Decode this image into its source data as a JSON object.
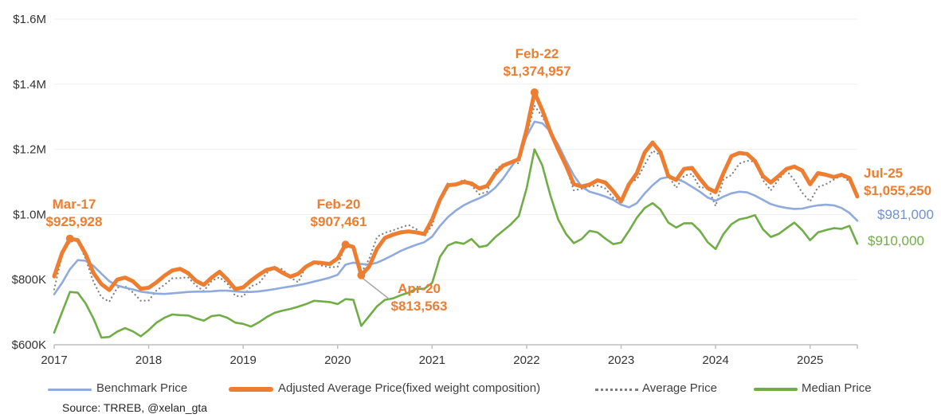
{
  "source_note": "Source: TRREB, @xelan_gta",
  "colors": {
    "adjusted_orange": "#ED7D31",
    "benchmark_blue": "#8FAADC",
    "benchmark_label_blue": "#7191CF",
    "median_green": "#70AD47",
    "average_gray": "#7F7F7F",
    "axis_line": "#BFBFBF",
    "gridline": "#F1F1F1",
    "tick_text": "#333333",
    "legend_text": "#404040",
    "leader_line": "#A6A6A6"
  },
  "legend": {
    "items": [
      {
        "label": "Benchmark Price",
        "series": "benchmark"
      },
      {
        "label": "Adjusted Average Price(fixed weight composition)",
        "series": "adjusted"
      },
      {
        "label": "Average Price",
        "series": "average"
      },
      {
        "label": "Median Price",
        "series": "median"
      }
    ]
  },
  "annotations": {
    "mar17": {
      "label": "Mar-17",
      "value": "$925,928"
    },
    "feb20": {
      "label": "Feb-20",
      "value": "$907,461"
    },
    "apr20": {
      "label": "Apr-20",
      "value": "$813,563"
    },
    "feb22": {
      "label": "Feb-22",
      "value": "$1,374,957"
    },
    "jul25": {
      "label": "Jul-25",
      "value": "$1,055,250"
    },
    "jul25_benchmark": {
      "value": "$981,000"
    },
    "jul25_median": {
      "value": "$910,000"
    }
  },
  "chart_data": {
    "type": "line",
    "units": "CAD thousands",
    "x_start": "2017-01",
    "x_end": "2025-07",
    "x_tick_labels": [
      "2017",
      "2018",
      "2019",
      "2020",
      "2021",
      "2022",
      "2023",
      "2024",
      "2025"
    ],
    "y_ticks": [
      {
        "label": "$600K",
        "value": 600
      },
      {
        "label": "$800K",
        "value": 800
      },
      {
        "label": "$1.0M",
        "value": 1000
      },
      {
        "label": "$1.2M",
        "value": 1200
      },
      {
        "label": "$1.4M",
        "value": 1400
      },
      {
        "label": "$1.6M",
        "value": 1600
      }
    ],
    "ylim": [
      600,
      1600
    ],
    "grid": true,
    "legend_position": "bottom",
    "series": [
      {
        "name": "Average Price",
        "style": "dotted",
        "color": "#7F7F7F",
        "values": [
          770,
          875,
          916,
          920,
          863,
          793,
          746,
          732,
          775,
          780,
          761,
          735,
          736,
          767,
          784,
          804,
          805,
          807,
          782,
          765,
          796,
          807,
          788,
          750,
          748,
          780,
          788,
          820,
          838,
          832,
          806,
          792,
          843,
          852,
          843,
          838,
          839,
          910,
          902,
          821,
          863,
          931,
          944,
          951,
          960,
          968,
          955,
          932,
          967,
          1045,
          1097,
          1090,
          1108,
          1089,
          1062,
          1070,
          1136,
          1155,
          1163,
          1157,
          1242,
          1334,
          1300,
          1254,
          1212,
          1146,
          1074,
          1079,
          1086,
          1089,
          1080,
          1051,
          1038,
          1096,
          1108,
          1153,
          1196,
          1182,
          1118,
          1082,
          1119,
          1125,
          1082,
          1084,
          1026,
          1108,
          1121,
          1156,
          1165,
          1162,
          1106,
          1074,
          1107,
          1135,
          1106,
          1067,
          1040,
          1084,
          1093,
          1107,
          1120,
          1101,
          1057
        ]
      },
      {
        "name": "Benchmark Price",
        "style": "solid",
        "color": "#8FAADC",
        "values": [
          755,
          790,
          832,
          860,
          858,
          842,
          818,
          795,
          782,
          775,
          770,
          763,
          760,
          757,
          756,
          758,
          760,
          762,
          763,
          763,
          764,
          766,
          766,
          764,
          762,
          762,
          764,
          767,
          771,
          775,
          779,
          783,
          788,
          794,
          800,
          806,
          815,
          846,
          852,
          848,
          846,
          852,
          863,
          875,
          888,
          898,
          907,
          915,
          932,
          965,
          992,
          1012,
          1028,
          1040,
          1050,
          1062,
          1082,
          1110,
          1145,
          1178,
          1240,
          1285,
          1280,
          1255,
          1215,
          1165,
          1120,
          1085,
          1070,
          1063,
          1055,
          1045,
          1030,
          1022,
          1035,
          1065,
          1090,
          1110,
          1115,
          1110,
          1100,
          1085,
          1070,
          1052,
          1042,
          1055,
          1065,
          1070,
          1068,
          1058,
          1045,
          1032,
          1025,
          1020,
          1017,
          1018,
          1024,
          1028,
          1030,
          1028,
          1020,
          1005,
          981
        ]
      },
      {
        "name": "Median Price",
        "style": "solid",
        "color": "#70AD47",
        "values": [
          637,
          700,
          762,
          760,
          727,
          680,
          622,
          624,
          640,
          651,
          641,
          626,
          645,
          668,
          683,
          693,
          691,
          690,
          681,
          674,
          688,
          691,
          683,
          668,
          664,
          656,
          669,
          685,
          698,
          705,
          710,
          717,
          725,
          735,
          733,
          731,
          725,
          740,
          738,
          658,
          688,
          718,
          738,
          742,
          752,
          760,
          772,
          772,
          790,
          870,
          905,
          915,
          910,
          925,
          900,
          905,
          930,
          950,
          970,
          995,
          1080,
          1200,
          1150,
          1060,
          985,
          940,
          912,
          925,
          950,
          945,
          926,
          909,
          914,
          950,
          990,
          1020,
          1035,
          1015,
          975,
          960,
          973,
          973,
          950,
          915,
          894,
          940,
          970,
          985,
          990,
          998,
          955,
          931,
          940,
          958,
          975,
          952,
          921,
          945,
          952,
          958,
          956,
          965,
          910
        ]
      },
      {
        "name": "Adjusted Average Price(fixed weight composition)",
        "style": "solid-thick",
        "color": "#ED7D31",
        "values": [
          810,
          882,
          925.928,
          921,
          878,
          820,
          786,
          768,
          800,
          806,
          795,
          772,
          775,
          792,
          812,
          828,
          833,
          820,
          796,
          784,
          806,
          824,
          800,
          771,
          776,
          797,
          815,
          830,
          836,
          821,
          809,
          818,
          840,
          853,
          851,
          848,
          865,
          907.461,
          900,
          813.563,
          840,
          895,
          928,
          938,
          945,
          948,
          945,
          940,
          985,
          1045,
          1090,
          1092,
          1100,
          1095,
          1080,
          1088,
          1125,
          1150,
          1160,
          1170,
          1260,
          1374.957,
          1320,
          1255,
          1200,
          1150,
          1093,
          1086,
          1092,
          1105,
          1098,
          1072,
          1040,
          1093,
          1127,
          1191,
          1221,
          1191,
          1118,
          1106,
          1140,
          1143,
          1110,
          1081,
          1069,
          1127,
          1179,
          1189,
          1186,
          1164,
          1118,
          1098,
          1118,
          1140,
          1147,
          1135,
          1093,
          1127,
          1122,
          1115,
          1122,
          1112,
          1055.25
        ]
      }
    ],
    "markers": [
      {
        "series": "Adjusted Average Price(fixed weight composition)",
        "month": "Mar-17",
        "index": 2,
        "value": 925.928
      },
      {
        "series": "Adjusted Average Price(fixed weight composition)",
        "month": "Feb-20",
        "index": 37,
        "value": 907.461
      },
      {
        "series": "Adjusted Average Price(fixed weight composition)",
        "month": "Apr-20",
        "index": 39,
        "value": 813.563
      },
      {
        "series": "Adjusted Average Price(fixed weight composition)",
        "month": "Feb-22",
        "index": 61,
        "value": 1374.957
      }
    ],
    "end_labels": [
      {
        "series": "Adjusted Average Price(fixed weight composition)",
        "month": "Jul-25",
        "text": "$1,055,250"
      },
      {
        "series": "Benchmark Price",
        "month": "Jul-25",
        "text": "$981,000"
      },
      {
        "series": "Median Price",
        "month": "Jul-25",
        "text": "$910,000"
      }
    ]
  }
}
